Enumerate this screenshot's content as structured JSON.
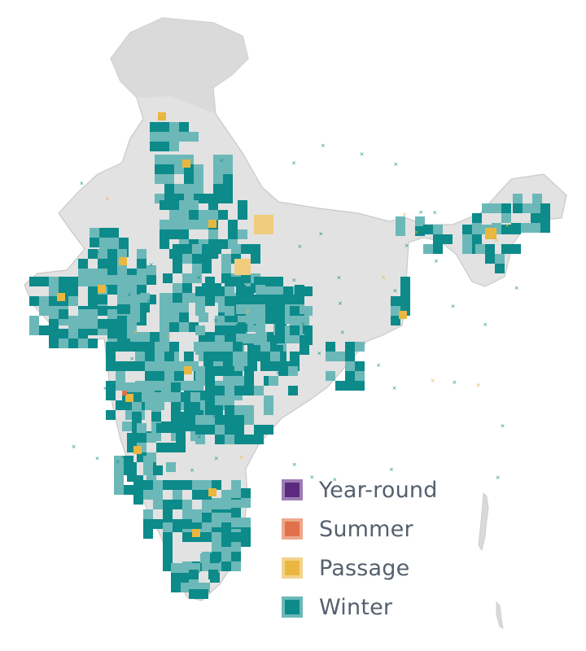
{
  "map": {
    "region": "India",
    "basemap": "grey-relief",
    "colors": {
      "land": "#e2e2e2",
      "land_stroke": "#c9c9c9",
      "cell_light": "#6cb8b8",
      "cell_dark": "#0d8a8a",
      "passage": "#e9b740",
      "passage_light": "#efcd7c",
      "summer": "#e0714a",
      "point_x": "#148a8a"
    },
    "legend": [
      {
        "label": "Year-round",
        "fill": "#5b2a7e",
        "border": "#9c7db5"
      },
      {
        "label": "Summer",
        "fill": "#e0714a",
        "border": "#eea78c"
      },
      {
        "label": "Passage",
        "fill": "#e9b740",
        "border": "#f1d38c"
      },
      {
        "label": "Winter",
        "fill": "#0d8a8a",
        "border": "#6cb8b8"
      }
    ]
  }
}
